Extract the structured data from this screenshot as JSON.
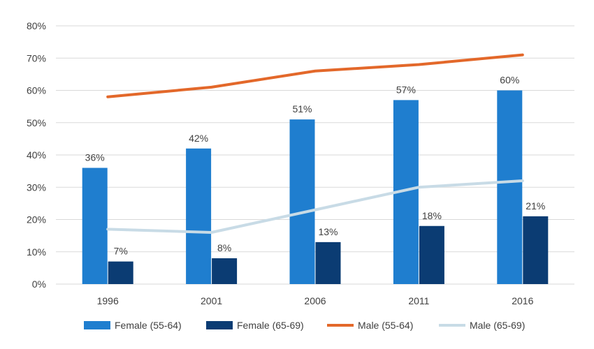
{
  "chart_data": {
    "type": "bar",
    "categories": [
      "1996",
      "2001",
      "2006",
      "2011",
      "2016"
    ],
    "ylim": [
      0,
      80
    ],
    "ytick_step": 10,
    "ytick_labels": [
      "0%",
      "10%",
      "20%",
      "30%",
      "40%",
      "50%",
      "60%",
      "70%",
      "80%"
    ],
    "grid": "horizontal",
    "legend_position": "bottom",
    "series": [
      {
        "name": "Female (55-64)",
        "kind": "bar",
        "color": "#1f7ecf",
        "values": [
          36,
          42,
          51,
          57,
          60
        ],
        "labels": [
          "36%",
          "42%",
          "51%",
          "57%",
          "60%"
        ]
      },
      {
        "name": "Female (65-69)",
        "kind": "bar",
        "color": "#0b3c73",
        "values": [
          7,
          8,
          13,
          18,
          21
        ],
        "labels": [
          "7%",
          "8%",
          "13%",
          "18%",
          "21%"
        ]
      },
      {
        "name": "Male (55-64)",
        "kind": "line",
        "color": "#e3682a",
        "values": [
          58,
          61,
          66,
          68,
          71
        ]
      },
      {
        "name": "Male (65-69)",
        "kind": "line",
        "color": "#c8dbe6",
        "values": [
          17,
          16,
          23,
          30,
          32
        ]
      }
    ]
  }
}
